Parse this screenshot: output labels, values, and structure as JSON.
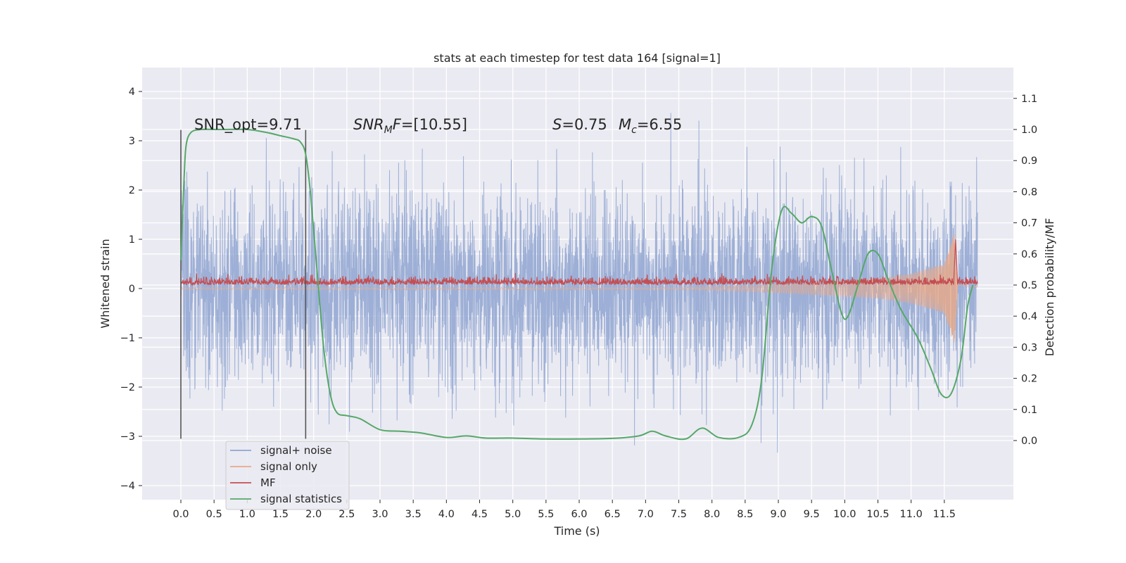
{
  "chart_data": {
    "type": "line",
    "title": "stats at each timestep for test data 164 [signal=1]",
    "xlabel": "Time (s)",
    "ylabel": "Whitened strain",
    "y2label": "Detection probability/MF",
    "xlim": [
      -0.55,
      12.6
    ],
    "ylim": [
      -4.4,
      4.5
    ],
    "y2lim": [
      -0.14,
      1.19
    ],
    "x_ticks": [
      0.0,
      0.5,
      1.0,
      1.5,
      2.0,
      2.5,
      3.0,
      3.5,
      4.0,
      4.5,
      5.0,
      5.5,
      6.0,
      6.5,
      7.0,
      7.5,
      8.0,
      8.5,
      9.0,
      9.5,
      10.0,
      10.5,
      11.0,
      11.5
    ],
    "x_tick_labels": [
      "0.0",
      "0.5",
      "1.0",
      "1.5",
      "2.0",
      "2.5",
      "3.0",
      "3.5",
      "4.0",
      "4.5",
      "5.0",
      "5.5",
      "6.0",
      "6.5",
      "7.0",
      "7.5",
      "8.0",
      "8.5",
      "9.0",
      "9.5",
      "10.0",
      "10.5",
      "11.0",
      "11.5"
    ],
    "y_ticks": [
      4,
      3,
      2,
      1,
      0,
      -1,
      -2,
      -3,
      -4
    ],
    "y_tick_labels": [
      "4",
      "3",
      "2",
      "1",
      "0",
      "−1",
      "−2",
      "−3",
      "−4"
    ],
    "y2_ticks": [
      1.1,
      1.0,
      0.9,
      0.8,
      0.7,
      0.6,
      0.5,
      0.4,
      0.3,
      0.2,
      0.1,
      0.0
    ],
    "y2_tick_labels": [
      "1.1",
      "1.0",
      "0.9",
      "0.8",
      "0.7",
      "0.6",
      "0.5",
      "0.4",
      "0.3",
      "0.2",
      "0.1",
      "0.0"
    ],
    "grid": true,
    "legend_position": "bottom-left",
    "annotations": {
      "snr_opt": "SNR_opt=9.71",
      "snr_mf_italic": "SNR",
      "snr_mf_sub": "M",
      "snr_mf_italic2": "F",
      "snr_mf_value": "=[10.55]",
      "s_label": "S",
      "s_value": "=0.75",
      "mc_label": "M",
      "mc_sub": "c",
      "mc_value": "=6.55"
    },
    "vlines": [
      0.0,
      1.88
    ],
    "time_range": [
      0.0,
      12.0
    ],
    "series": [
      {
        "name": "signal+ noise",
        "color": "#8fa5d1",
        "axis": "left",
        "kind": "noise",
        "std": 1.0
      },
      {
        "name": "signal only",
        "color": "#e8a987",
        "axis": "left",
        "kind": "chirp",
        "envelope": {
          "x": [
            0.0,
            7.5,
            8.5,
            9.5,
            10.5,
            11.0,
            11.5,
            11.65,
            11.7,
            12.0
          ],
          "y": [
            0.02,
            0.02,
            0.06,
            0.12,
            0.2,
            0.3,
            0.5,
            1.15,
            0.08,
            0.03
          ]
        }
      },
      {
        "name": "MF",
        "color": "#c44e52",
        "axis": "left",
        "kind": "mf",
        "base": 0.08,
        "spike": {
          "x": 11.67,
          "y": 1.0
        }
      },
      {
        "name": "signal statistics",
        "color": "#55a868",
        "axis": "right",
        "kind": "line",
        "x": [
          0.0,
          0.05,
          0.08,
          0.15,
          0.3,
          0.6,
          1.0,
          1.3,
          1.5,
          1.7,
          1.8,
          1.88,
          1.95,
          2.05,
          2.15,
          2.25,
          2.35,
          2.5,
          2.7,
          3.0,
          3.3,
          3.6,
          4.0,
          4.3,
          4.6,
          5.0,
          5.5,
          6.0,
          6.5,
          6.9,
          7.1,
          7.3,
          7.6,
          7.85,
          8.1,
          8.4,
          8.6,
          8.75,
          8.9,
          9.05,
          9.2,
          9.35,
          9.5,
          9.65,
          9.8,
          9.95,
          10.05,
          10.2,
          10.35,
          10.5,
          10.65,
          10.85,
          11.1,
          11.3,
          11.45,
          11.6,
          11.75,
          11.85,
          11.93
        ],
        "y": [
          0.58,
          0.85,
          0.95,
          0.99,
          1.0,
          1.0,
          1.0,
          0.99,
          0.98,
          0.97,
          0.96,
          0.92,
          0.8,
          0.55,
          0.3,
          0.15,
          0.09,
          0.08,
          0.07,
          0.035,
          0.03,
          0.025,
          0.01,
          0.015,
          0.008,
          0.008,
          0.005,
          0.005,
          0.007,
          0.015,
          0.03,
          0.015,
          0.005,
          0.04,
          0.01,
          0.01,
          0.05,
          0.2,
          0.55,
          0.74,
          0.73,
          0.7,
          0.72,
          0.69,
          0.55,
          0.41,
          0.4,
          0.5,
          0.6,
          0.6,
          0.52,
          0.42,
          0.33,
          0.23,
          0.15,
          0.15,
          0.26,
          0.43,
          0.5
        ]
      }
    ]
  }
}
